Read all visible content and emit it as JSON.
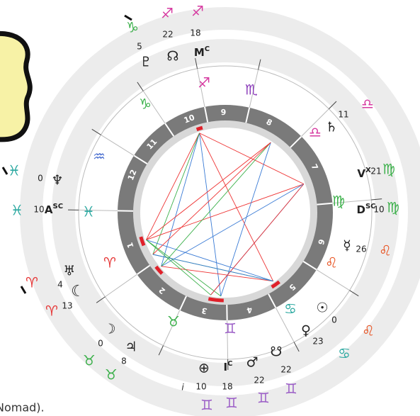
{
  "zodiac_ring": [
    {
      "glyph": "♐",
      "color": "#d63aa0"
    },
    {
      "glyph": "♏",
      "color": "#8a3ab9"
    },
    {
      "glyph": "♎",
      "color": "#d63aa0"
    },
    {
      "glyph": "♍",
      "color": "#3bb04a"
    },
    {
      "glyph": "♌",
      "color": "#e8501e"
    },
    {
      "glyph": "♋",
      "color": "#2aa8a0"
    },
    {
      "glyph": "♊",
      "color": "#9a5cc6"
    },
    {
      "glyph": "♉",
      "color": "#3bb04a"
    },
    {
      "glyph": "♈",
      "color": "#e63a3a"
    },
    {
      "glyph": "♓",
      "color": "#2aa8a0"
    },
    {
      "glyph": "♒",
      "color": "#4a6fd0"
    },
    {
      "glyph": "♑",
      "color": "#3bb04a"
    }
  ],
  "house_numbers": [
    "10",
    "9",
    "8",
    "7",
    "6",
    "5",
    "4",
    "3",
    "2",
    "1",
    "12",
    "11"
  ],
  "points": [
    {
      "symbol": "♇",
      "degree": 5,
      "sign": "♑",
      "color": "#3bb04a"
    },
    {
      "symbol": "☊",
      "degree": 22,
      "sign": "♐",
      "color": "#d63aa0"
    },
    {
      "symbol": "M",
      "sup": "C",
      "degree": 18,
      "sign": "♐",
      "color": "#d63aa0"
    },
    {
      "symbol": "♄",
      "degree": 11,
      "sign": "♎",
      "color": "#d63aa0"
    },
    {
      "symbol": "V",
      "sup": "X",
      "degree": 21,
      "sign": "♍",
      "color": "#3bb04a"
    },
    {
      "symbol": "D",
      "sup": "SC",
      "degree": 10,
      "sign": "♍",
      "color": "#3bb04a"
    },
    {
      "symbol": "☿",
      "degree": 26,
      "sign": "♌",
      "color": "#e8501e"
    },
    {
      "symbol": "☉",
      "degree": 0,
      "sign": "♌",
      "color": "#e8501e"
    },
    {
      "symbol": "♀",
      "degree": 23,
      "sign": "♋",
      "color": "#2aa8a0"
    },
    {
      "symbol": "☋",
      "degree": 22,
      "sign": "♊",
      "color": "#9a5cc6"
    },
    {
      "symbol": "♂",
      "degree": 22,
      "sign": "♊",
      "color": "#9a5cc6"
    },
    {
      "symbol": "I",
      "sup": "C",
      "degree": 18,
      "sign": "♊",
      "color": "#9a5cc6"
    },
    {
      "symbol": "⊕",
      "prefix": "i",
      "degree": 10,
      "sign": "♊",
      "color": "#9a5cc6"
    },
    {
      "symbol": "♃",
      "degree": 8,
      "sign": "♉",
      "color": "#3bb04a"
    },
    {
      "symbol": "☽",
      "degree": 0,
      "sign": "♉",
      "color": "#3bb04a"
    },
    {
      "symbol": "☾",
      "degree": 13,
      "sign": "♈",
      "color": "#e63a3a"
    },
    {
      "symbol": "♅",
      "degree": 4,
      "sign": "♈",
      "color": "#e63a3a"
    },
    {
      "symbol": "A",
      "sup": "SC",
      "degree": 10,
      "sign": "♓",
      "color": "#2aa8a0"
    },
    {
      "symbol": "♆",
      "degree": 0,
      "sign": "♓",
      "color": "#2aa8a0"
    }
  ],
  "footer": "Nomad)."
}
